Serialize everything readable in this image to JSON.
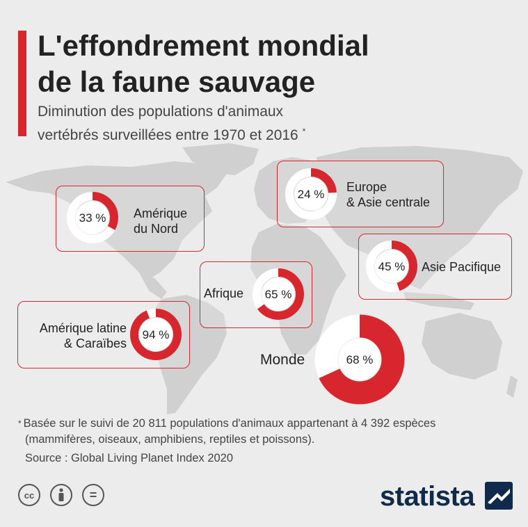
{
  "header": {
    "title_line1": "L'effondrement mondial",
    "title_line2": "de la faune sauvage",
    "subtitle_line1": "Diminution des populations d'animaux",
    "subtitle_line2": "vertébrés surveillées entre 1970 et 2016",
    "subtitle_marker": "*"
  },
  "chart_data": {
    "type": "donut",
    "unit": "%",
    "series": [
      {
        "region": "Amérique du Nord",
        "label_lines": [
          "Amérique",
          "du Nord"
        ],
        "value": 33,
        "value_label": "33 %"
      },
      {
        "region": "Europe & Asie centrale",
        "label_lines": [
          "Europe",
          "& Asie centrale"
        ],
        "value": 24,
        "value_label": "24 %"
      },
      {
        "region": "Asie Pacifique",
        "label_lines": [
          "Asie Pacifique"
        ],
        "value": 45,
        "value_label": "45 %"
      },
      {
        "region": "Afrique",
        "label_lines": [
          "Afrique"
        ],
        "value": 65,
        "value_label": "65 %"
      },
      {
        "region": "Amérique latine & Caraïbes",
        "label_lines": [
          "Amérique latine",
          "& Caraïbes"
        ],
        "value": 94,
        "value_label": "94 %"
      },
      {
        "region": "Monde",
        "label_lines": [
          "Monde"
        ],
        "value": 68,
        "value_label": "68 %"
      }
    ]
  },
  "footer": {
    "footnote_marker": "*",
    "footnote_line1": "Basée sur le suivi de 20 811 populations d'animaux appartenant à 4 392 espèces",
    "footnote_line2": "(mammifères, oiseaux, amphibiens, reptiles et poissons).",
    "source": "Source : Global Living Planet Index 2020",
    "license_icons": [
      "cc-icon",
      "attribution-icon",
      "no-derivatives-icon"
    ],
    "cc_text": "cc",
    "nd_text": "=",
    "logo_text": "statista"
  },
  "colors": {
    "accent": "#d7262e",
    "donut_track": "#ffffff",
    "map": "#d0d0d0",
    "logo": "#102a4c"
  }
}
